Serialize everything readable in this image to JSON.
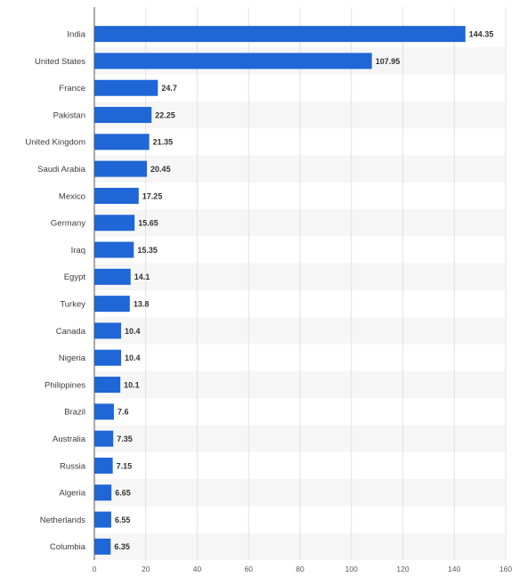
{
  "chart_data": {
    "type": "bar",
    "orientation": "horizontal",
    "categories": [
      "India",
      "United States",
      "France",
      "Pakistan",
      "United Kingdom",
      "Saudi Arabia",
      "Mexico",
      "Germany",
      "Iraq",
      "Egypt",
      "Turkey",
      "Canada",
      "Nigeria",
      "Philippines",
      "Brazil",
      "Australia",
      "Russia",
      "Algeria",
      "Netherlands",
      "Columbia"
    ],
    "values": [
      144.35,
      107.95,
      24.7,
      22.25,
      21.35,
      20.45,
      17.25,
      15.65,
      15.35,
      14.1,
      13.8,
      10.4,
      10.4,
      10.1,
      7.6,
      7.35,
      7.15,
      6.65,
      6.55,
      6.35
    ],
    "value_labels": [
      "144.35",
      "107.95",
      "24.7",
      "22.25",
      "21.35",
      "20.45",
      "17.25",
      "15.65",
      "15.35",
      "14.1",
      "13.8",
      "10.4",
      "10.4",
      "10.1",
      "7.6",
      "7.35",
      "7.15",
      "6.65",
      "6.55",
      "6.35"
    ],
    "xlim": [
      0,
      160
    ],
    "x_ticks": [
      0,
      20,
      40,
      60,
      80,
      100,
      120,
      140,
      160
    ],
    "grid": true,
    "alternating_row_bands": true,
    "bar_color": "#1f66d6",
    "band_color": "#f6f6f6",
    "grid_color": "#e2e2e2"
  }
}
